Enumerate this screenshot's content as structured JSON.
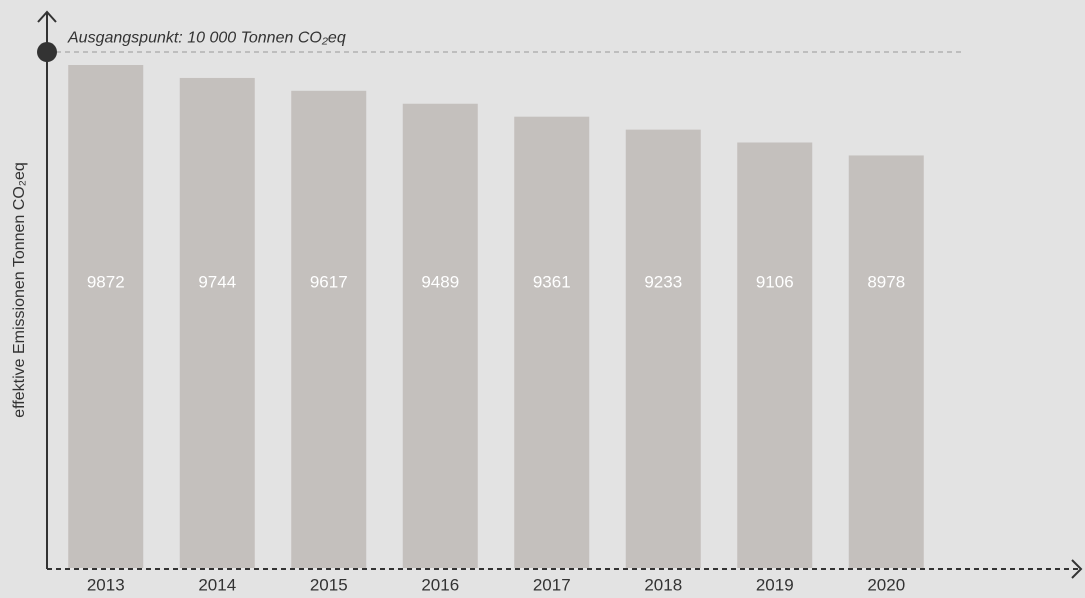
{
  "chart_data": {
    "type": "bar",
    "ylabel": "effektive Emissionen Tonnen CO₂eq",
    "categories": [
      "2013",
      "2014",
      "2015",
      "2016",
      "2017",
      "2018",
      "2019",
      "2020"
    ],
    "values": [
      9872,
      9744,
      9617,
      9489,
      9361,
      9233,
      9106,
      8978
    ],
    "color": "#c4c0bd",
    "ylim": [
      4900,
      10040
    ],
    "reference_line": {
      "value": 10000,
      "label": "Ausgangspunkt: 10 000 Tonnen CO₂eq"
    }
  }
}
